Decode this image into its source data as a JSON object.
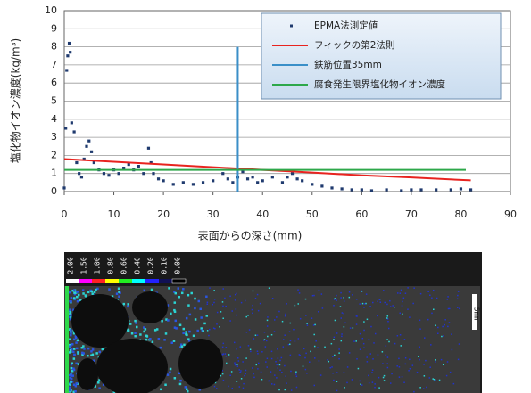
{
  "chart_data": {
    "type": "scatter",
    "xlabel": "表面からの深さ(mm)",
    "ylabel": "塩化物イオン濃度(kg/m³)",
    "xlim": [
      0,
      90
    ],
    "xticks": [
      0,
      10,
      20,
      30,
      40,
      50,
      60,
      70,
      80,
      90
    ],
    "ylim": [
      0,
      10
    ],
    "yticks": [
      0,
      1,
      2,
      3,
      4,
      5,
      6,
      7,
      8,
      9,
      10
    ],
    "grid": true,
    "legend": "upper right",
    "series": [
      {
        "name": "EPMA法測定値",
        "color": "#1f3a6e",
        "style": "markers",
        "x": [
          0,
          0.3,
          0.5,
          0.7,
          1,
          1.2,
          1.5,
          2,
          2.5,
          3,
          3.5,
          4,
          4.5,
          5,
          5.5,
          6,
          7,
          8,
          9,
          10,
          11,
          12,
          13,
          14,
          15,
          16,
          17,
          17.5,
          18,
          19,
          20,
          22,
          24,
          26,
          28,
          30,
          32,
          33,
          34,
          35,
          36,
          37,
          38,
          39,
          40,
          42,
          44,
          45,
          46,
          47,
          48,
          50,
          52,
          54,
          56,
          58,
          60,
          62,
          65,
          68,
          70,
          72,
          75,
          78,
          80,
          82
        ],
        "values": [
          0.2,
          3.5,
          6.7,
          7.5,
          8.2,
          7.7,
          3.8,
          3.3,
          1.6,
          1.0,
          0.8,
          1.8,
          2.5,
          2.8,
          2.2,
          1.6,
          1.2,
          1.0,
          0.9,
          1.2,
          1.0,
          1.3,
          1.5,
          1.2,
          1.4,
          1.0,
          2.4,
          1.6,
          1.0,
          0.7,
          0.6,
          0.4,
          0.5,
          0.4,
          0.5,
          0.6,
          1.0,
          0.7,
          0.5,
          0.8,
          1.1,
          0.7,
          0.8,
          0.5,
          0.6,
          0.8,
          0.5,
          0.8,
          1.0,
          0.7,
          0.6,
          0.4,
          0.3,
          0.2,
          0.15,
          0.1,
          0.1,
          0.05,
          0.1,
          0.05,
          0.1,
          0.1,
          0.1,
          0.1,
          0.15,
          0.1
        ]
      },
      {
        "name": "フィックの第2法則",
        "color": "#e8231f",
        "style": "line",
        "x": [
          0,
          10,
          20,
          30,
          40,
          50,
          60,
          70,
          82
        ],
        "values": [
          1.8,
          1.65,
          1.5,
          1.35,
          1.2,
          1.05,
          0.9,
          0.78,
          0.62
        ]
      },
      {
        "name": "鉄筋位置35mm",
        "color": "#3a8fc8",
        "style": "line",
        "x": [
          35,
          35
        ],
        "values": [
          0,
          8
        ]
      },
      {
        "name": "腐食発生限界塩化物イオン濃度",
        "color": "#2ea84a",
        "style": "line",
        "x": [
          0,
          81
        ],
        "values": [
          1.2,
          1.2
        ]
      }
    ]
  },
  "map": {
    "scale_labels": [
      "2.00",
      "1.50",
      "1.00",
      "0.80",
      "0.60",
      "0.40",
      "0.20",
      "0.10",
      "0.00"
    ],
    "scale_bar": "5mm"
  }
}
